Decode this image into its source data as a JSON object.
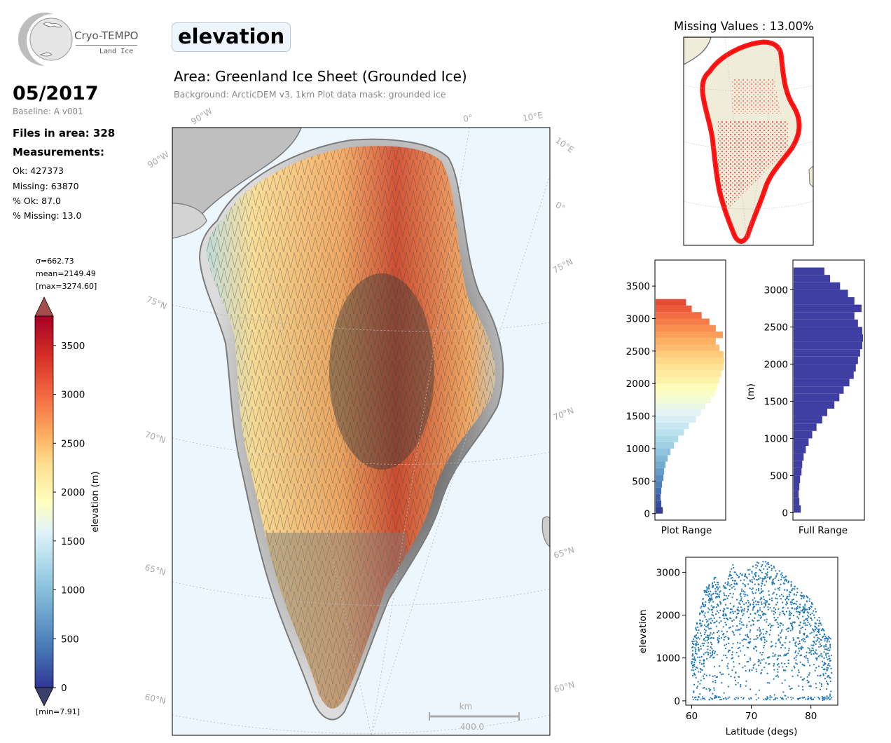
{
  "logo": {
    "name": "Cryo-TEMPO",
    "subtitle": "Land Ice"
  },
  "header": {
    "product": "elevation",
    "area_title": "Area: Greenland Ice Sheet (Grounded Ice)",
    "area_subtitle": "Background: ArcticDEM v3, 1km   Plot data mask: grounded ice"
  },
  "info": {
    "date": "05/2017",
    "baseline": "Baseline: A v001",
    "files": "Files in area: 328",
    "measurements_label": "Measurements:",
    "ok": "Ok: 427373",
    "missing": "Missing: 63870",
    "pct_ok": "% Ok: 87.0",
    "pct_missing": "% Missing: 13.0"
  },
  "colorbar": {
    "sigma": "σ=662.73",
    "mean": "mean=2149.49",
    "max": "[max=3274.60]",
    "min": "[min=7.91]",
    "label": "elevation (m)",
    "ticks": [
      "0",
      "500",
      "1000",
      "1500",
      "2000",
      "2500",
      "3000",
      "3500"
    ],
    "colors": [
      "#313695",
      "#4575b4",
      "#74add1",
      "#abd9e9",
      "#e0f3f8",
      "#ffffbf",
      "#fee090",
      "#fdae61",
      "#f46d43",
      "#d73027",
      "#a50026"
    ],
    "over_color": "#a44d4d",
    "under_color": "#3b3f6c"
  },
  "main_map": {
    "lat_labels": [
      "75°N",
      "70°N",
      "65°N",
      "60°N",
      "75°N",
      "70°N",
      "65°N",
      "60°N"
    ],
    "lon_labels": [
      "90°W",
      "90°W",
      "0°",
      "10°E",
      "10°E",
      "0°"
    ],
    "scalebar_unit": "km",
    "scalebar_value": "400.0",
    "ocean_color": "#eef6fd",
    "ice_color": "#e6e6e6",
    "coast_color": "#7a7a7a"
  },
  "inset": {
    "title": "Missing Values : 13.00%",
    "land_color": "#efedda",
    "missing_color": "#ff0000"
  },
  "hist_plot_range": {
    "xlabel": "Plot Range",
    "yticks": [
      "0",
      "500",
      "1000",
      "1500",
      "2000",
      "2500",
      "3000",
      "3500"
    ]
  },
  "hist_full_range": {
    "xlabel": "Full Range",
    "ylabel": "(m)",
    "yticks": [
      "0",
      "500",
      "1000",
      "1500",
      "2000",
      "2500",
      "3000"
    ],
    "bar_color": "#3f3fa3"
  },
  "scatter": {
    "xlabel": "Latitude (degs)",
    "ylabel": "elevation",
    "xticks": [
      "60",
      "70",
      "80"
    ],
    "yticks": [
      "0",
      "1000",
      "2000",
      "3000"
    ],
    "point_color": "#1f77b4"
  },
  "chart_data": [
    {
      "type": "heatmap",
      "title": "Area: Greenland Ice Sheet (Grounded Ice)",
      "colorbar_label": "elevation (m)",
      "vmin": 0,
      "vmax": 3800,
      "min": 7.91,
      "max": 3274.6,
      "mean": 2149.49,
      "sigma": 662.73
    },
    {
      "type": "bar",
      "orientation": "horizontal",
      "xlabel": "Plot Range",
      "ylim": [
        -100,
        3900
      ],
      "bin_centers": [
        50,
        150,
        250,
        350,
        450,
        550,
        650,
        750,
        850,
        950,
        1050,
        1150,
        1250,
        1350,
        1450,
        1550,
        1650,
        1750,
        1850,
        1950,
        2050,
        2150,
        2250,
        2350,
        2450,
        2550,
        2650,
        2750,
        2850,
        2950,
        3050,
        3150,
        3250
      ],
      "counts": [
        10,
        8,
        7,
        8,
        9,
        11,
        12,
        14,
        17,
        21,
        26,
        32,
        40,
        47,
        57,
        64,
        70,
        78,
        84,
        87,
        90,
        93,
        96,
        97,
        96,
        90,
        85,
        95,
        85,
        76,
        65,
        51,
        43
      ]
    },
    {
      "type": "bar",
      "orientation": "horizontal",
      "xlabel": "Full Range",
      "ylabel": "(m)",
      "ylim": [
        -100,
        3400
      ],
      "bin_centers": [
        50,
        150,
        250,
        350,
        450,
        550,
        650,
        750,
        850,
        950,
        1050,
        1150,
        1250,
        1350,
        1450,
        1550,
        1650,
        1750,
        1850,
        1950,
        2050,
        2150,
        2250,
        2350,
        2450,
        2550,
        2650,
        2750,
        2850,
        2950,
        3050,
        3150,
        3250
      ],
      "counts": [
        10,
        8,
        7,
        8,
        9,
        11,
        12,
        14,
        17,
        21,
        26,
        32,
        40,
        47,
        57,
        64,
        70,
        78,
        84,
        87,
        90,
        93,
        96,
        97,
        96,
        90,
        85,
        95,
        85,
        76,
        65,
        51,
        43
      ]
    },
    {
      "type": "scatter",
      "xlabel": "Latitude (degs)",
      "ylabel": "elevation",
      "xlim": [
        59,
        84.5
      ],
      "ylim": [
        -100,
        3350
      ],
      "envelope_lat": [
        60,
        61,
        62,
        63,
        64,
        65,
        66,
        67,
        68,
        69,
        70,
        71,
        72,
        73,
        74,
        75,
        76,
        77,
        78,
        79,
        80,
        81,
        82,
        83
      ],
      "envelope_max": [
        1350,
        1950,
        2550,
        2850,
        2900,
        2700,
        2900,
        3200,
        3000,
        3050,
        3150,
        3250,
        3250,
        3240,
        3150,
        3000,
        2900,
        2750,
        2600,
        2500,
        2350,
        2100,
        1700,
        1500
      ]
    }
  ]
}
